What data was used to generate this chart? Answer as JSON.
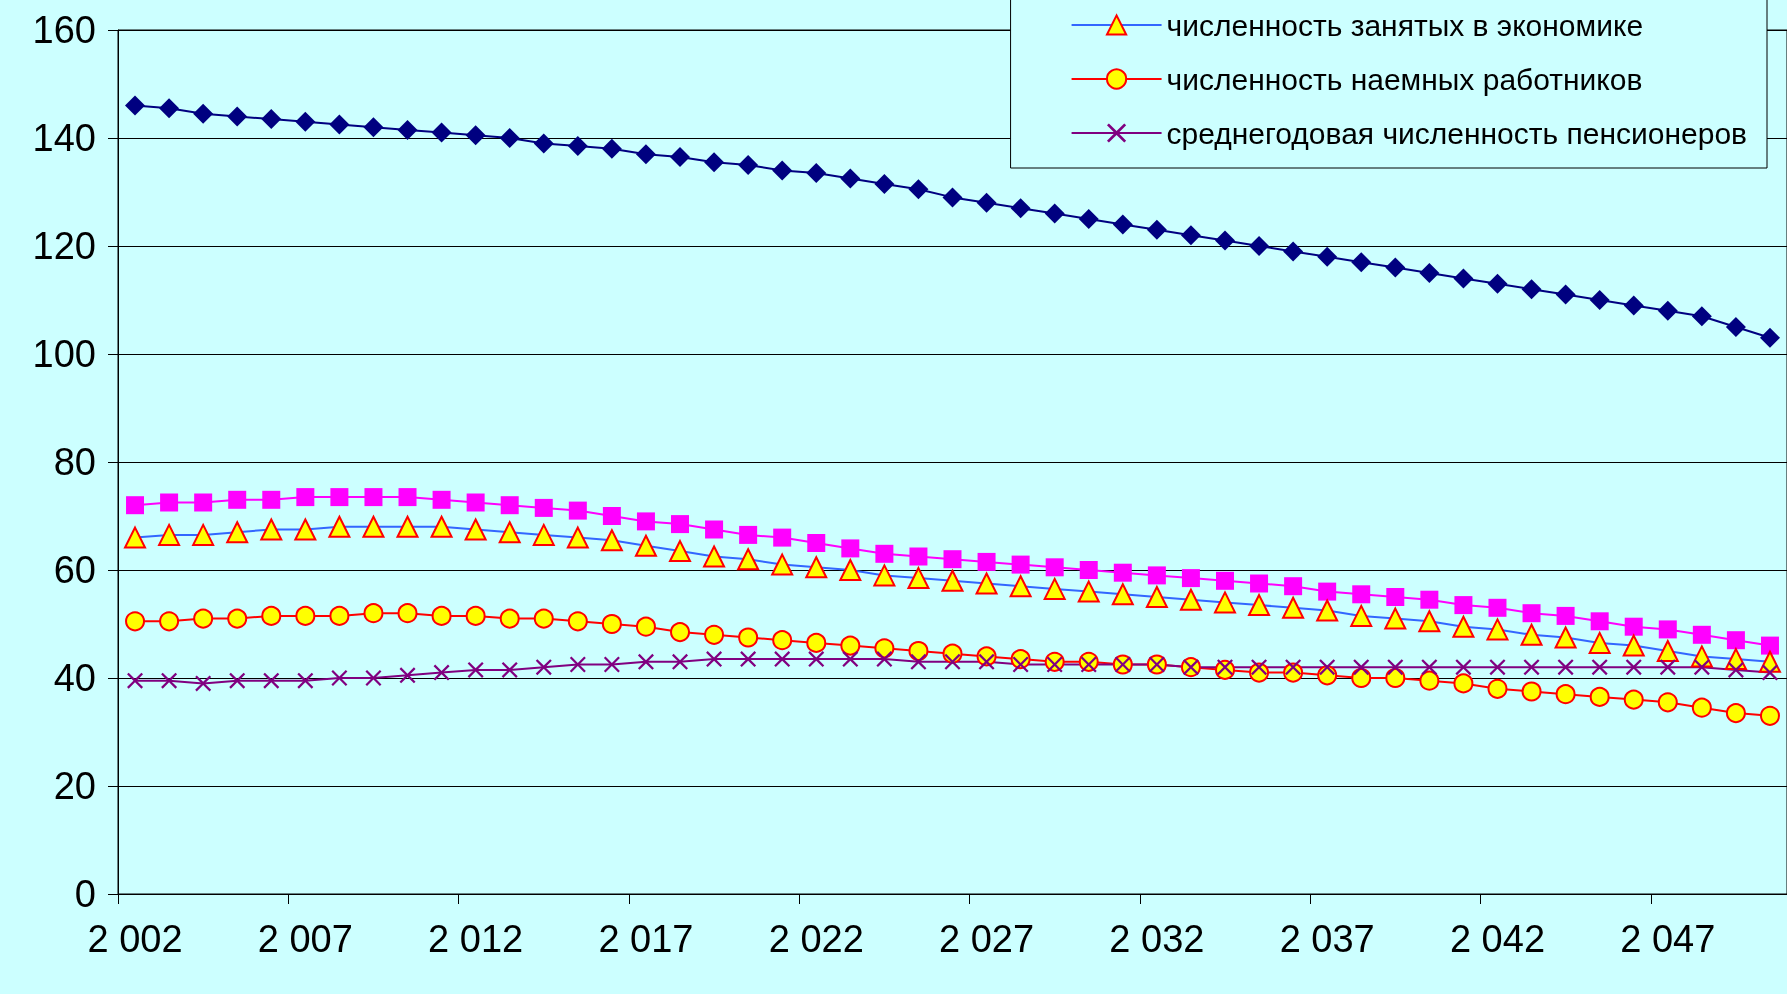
{
  "chart_data": {
    "type": "line",
    "categories": [
      "2 002",
      null,
      null,
      null,
      null,
      "2 007",
      null,
      null,
      null,
      null,
      "2 012",
      null,
      null,
      null,
      null,
      "2 017",
      null,
      null,
      null,
      null,
      "2 022",
      null,
      null,
      null,
      null,
      "2 027",
      null,
      null,
      null,
      null,
      "2 032",
      null,
      null,
      null,
      null,
      "2 037",
      null,
      null,
      null,
      null,
      "2 042",
      null,
      null,
      null,
      null,
      "2 047",
      null,
      null,
      null
    ],
    "ylim": [
      0,
      160
    ],
    "yticks": [
      0,
      20,
      40,
      60,
      80,
      100,
      120,
      140,
      160
    ],
    "grid": "y",
    "legend": "top right",
    "series": [
      {
        "color": "#000080",
        "marker": "diamond",
        "values": [
          146,
          145.5,
          144.5,
          144,
          143.5,
          143,
          142.5,
          142,
          141.5,
          141,
          140.5,
          140,
          139,
          138.5,
          138,
          137,
          136.5,
          135.5,
          135,
          134,
          133.5,
          132.5,
          131.5,
          130.5,
          129,
          128,
          127,
          126,
          125,
          124,
          123,
          122,
          121,
          120,
          119,
          118,
          117,
          116,
          115,
          114,
          113,
          112,
          111,
          110,
          109,
          108,
          107,
          105,
          103
        ]
      },
      {
        "color": "#ff00ff",
        "marker": "square",
        "values": [
          72,
          72.5,
          72.5,
          73,
          73,
          73.5,
          73.5,
          73.5,
          73.5,
          73,
          72.5,
          72,
          71.5,
          71,
          70,
          69,
          68.5,
          67.5,
          66.5,
          66,
          65,
          64,
          63,
          62.5,
          62,
          61.5,
          61,
          60.5,
          60,
          59.5,
          59,
          58.5,
          58,
          57.5,
          57,
          56,
          55.5,
          55,
          54.5,
          53.5,
          53,
          52,
          51.5,
          50.5,
          49.5,
          49,
          48,
          47,
          46
        ]
      },
      {
        "name": "численность занятых в экономике",
        "color": "#3366ff",
        "marker": "triangle",
        "values": [
          66,
          66.5,
          66.5,
          67,
          67.5,
          67.5,
          68,
          68,
          68,
          68,
          67.5,
          67,
          66.5,
          66,
          65.5,
          64.5,
          63.5,
          62.5,
          62,
          61,
          60.5,
          60,
          59,
          58.5,
          58,
          57.5,
          57,
          56.5,
          56,
          55.5,
          55,
          54.5,
          54,
          53.5,
          53,
          52.5,
          51.5,
          51,
          50.5,
          49.5,
          49,
          48,
          47.5,
          46.5,
          46,
          45,
          44,
          43.5,
          43
        ]
      },
      {
        "name": "численность наемных работников",
        "color": "#ff0000",
        "marker": "circle",
        "values": [
          50.5,
          50.5,
          51,
          51,
          51.5,
          51.5,
          51.5,
          52,
          52,
          51.5,
          51.5,
          51,
          51,
          50.5,
          50,
          49.5,
          48.5,
          48,
          47.5,
          47,
          46.5,
          46,
          45.5,
          45,
          44.5,
          44,
          43.5,
          43,
          43,
          42.5,
          42.5,
          42,
          41.5,
          41,
          41,
          40.5,
          40,
          40,
          39.5,
          39,
          38,
          37.5,
          37,
          36.5,
          36,
          35.5,
          34.5,
          33.5,
          33
        ]
      },
      {
        "name": "среднегодовая численность пенсионеров",
        "color": "#800080",
        "marker": "cross",
        "values": [
          39.5,
          39.5,
          39,
          39.5,
          39.5,
          39.5,
          40,
          40,
          40.5,
          41,
          41.5,
          41.5,
          42,
          42.5,
          42.5,
          43,
          43,
          43.5,
          43.5,
          43.5,
          43.5,
          43.5,
          43.5,
          43,
          43,
          43,
          42.5,
          42.5,
          42.5,
          42.5,
          42.5,
          42,
          42,
          42,
          42,
          42,
          42,
          42,
          42,
          42,
          42,
          42,
          42,
          42,
          42,
          42,
          42,
          41.5,
          41
        ]
      }
    ]
  }
}
